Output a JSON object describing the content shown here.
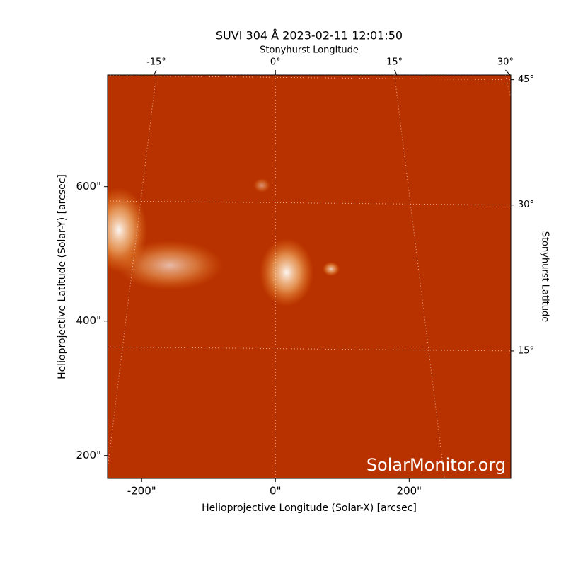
{
  "chart_data": {
    "type": "image",
    "title": "SUVI 304 Å 2023-02-11 12:01:50",
    "xlabel": "Helioprojective Longitude (Solar-X) [arcsec]",
    "ylabel": "Helioprojective Latitude (Solar-Y) [arcsec]",
    "x2label": "Stonyhurst Longitude",
    "y2label": "Stonyhurst Latitude",
    "xlim": [
      -251,
      352
    ],
    "ylim": [
      166,
      766
    ],
    "xticks": [
      {
        "value": -200,
        "label": "-200\""
      },
      {
        "value": 0,
        "label": "0\""
      },
      {
        "value": 200,
        "label": "200\""
      }
    ],
    "yticks": [
      {
        "value": 200,
        "label": "200\""
      },
      {
        "value": 400,
        "label": "400\""
      },
      {
        "value": 600,
        "label": "600\""
      }
    ],
    "x2ticks": [
      {
        "value": -15,
        "label": "-15°"
      },
      {
        "value": 0,
        "label": "0°"
      },
      {
        "value": 15,
        "label": "15°"
      },
      {
        "value": 30,
        "label": "30°"
      }
    ],
    "y2ticks": [
      {
        "value": 15,
        "label": "15°"
      },
      {
        "value": 30,
        "label": "30°"
      },
      {
        "value": 45,
        "label": "45°"
      }
    ],
    "grid": true,
    "watermark": "SolarMonitor.org"
  }
}
